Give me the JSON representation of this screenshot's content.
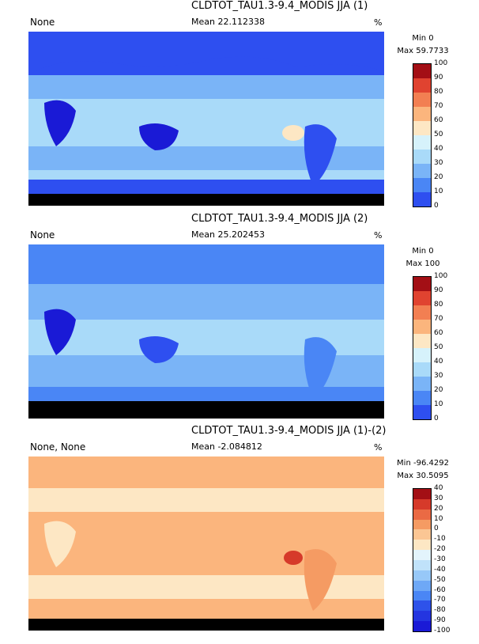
{
  "colors": {
    "ocean_land_note": "value-driven colormaps",
    "abs_scale": [
      "#1a1ad6",
      "#2e4ff0",
      "#4a86f5",
      "#7ab4f7",
      "#a9daf9",
      "#d6f2fb",
      "#fde7c4",
      "#fbb57d",
      "#f27f52",
      "#e04330",
      "#a30f15"
    ],
    "diff_scale": [
      "#1a1ad6",
      "#2435e0",
      "#2e52ea",
      "#4a86f5",
      "#6ea8f6",
      "#97c8f8",
      "#c0e2fa",
      "#e3f4fc",
      "#fde7c4",
      "#fbc694",
      "#f59b63",
      "#ea6a44",
      "#d63a2a",
      "#a30f15"
    ]
  },
  "panels": [
    {
      "title": "CLDTOT_TAU1.3-9.4_MODIS JJA (1)",
      "left_label": "None",
      "mean": "Mean 22.112338",
      "unit": "%",
      "min": "Min 0",
      "max": "Max 59.7733",
      "colorbar_ticks": [
        "100",
        "90",
        "80",
        "70",
        "60",
        "50",
        "40",
        "30",
        "20",
        "10",
        "0"
      ]
    },
    {
      "title": "CLDTOT_TAU1.3-9.4_MODIS JJA (2)",
      "left_label": "None",
      "mean": "Mean 25.202453",
      "unit": "%",
      "min": "Min 0",
      "max": "Max 100",
      "colorbar_ticks": [
        "100",
        "90",
        "80",
        "70",
        "60",
        "50",
        "40",
        "30",
        "20",
        "10",
        "0"
      ]
    },
    {
      "title": "CLDTOT_TAU1.3-9.4_MODIS JJA (1)-(2)",
      "left_label": "None, None",
      "mean": "Mean -2.084812",
      "unit": "%",
      "min": "Min -96.4292",
      "max": "Max 30.5095",
      "colorbar_ticks": [
        "40",
        "30",
        "20",
        "10",
        "0",
        "-10",
        "-20",
        "-30",
        "-40",
        "-50",
        "-60",
        "-70",
        "-80",
        "-90",
        "-100"
      ]
    }
  ],
  "chart_data": [
    {
      "type": "heatmap",
      "title": "CLDTOT_TAU1.3-9.4_MODIS JJA (1)",
      "value_range": [
        0,
        100
      ],
      "stats": {
        "mean": 22.112338,
        "min": 0,
        "max": 59.7733
      },
      "levels": [
        0,
        10,
        20,
        30,
        40,
        50,
        60,
        70,
        80,
        90,
        100
      ],
      "units": "%"
    },
    {
      "type": "heatmap",
      "title": "CLDTOT_TAU1.3-9.4_MODIS JJA (2)",
      "value_range": [
        0,
        100
      ],
      "stats": {
        "mean": 25.202453,
        "min": 0,
        "max": 100
      },
      "levels": [
        0,
        10,
        20,
        30,
        40,
        50,
        60,
        70,
        80,
        90,
        100
      ],
      "units": "%"
    },
    {
      "type": "heatmap",
      "title": "CLDTOT_TAU1.3-9.4_MODIS JJA (1)-(2)",
      "value_range": [
        -100,
        40
      ],
      "stats": {
        "mean": -2.084812,
        "min": -96.4292,
        "max": 30.5095
      },
      "levels": [
        -100,
        -90,
        -80,
        -70,
        -60,
        -50,
        -40,
        -30,
        -20,
        -10,
        0,
        10,
        20,
        30,
        40
      ],
      "units": "%"
    }
  ]
}
